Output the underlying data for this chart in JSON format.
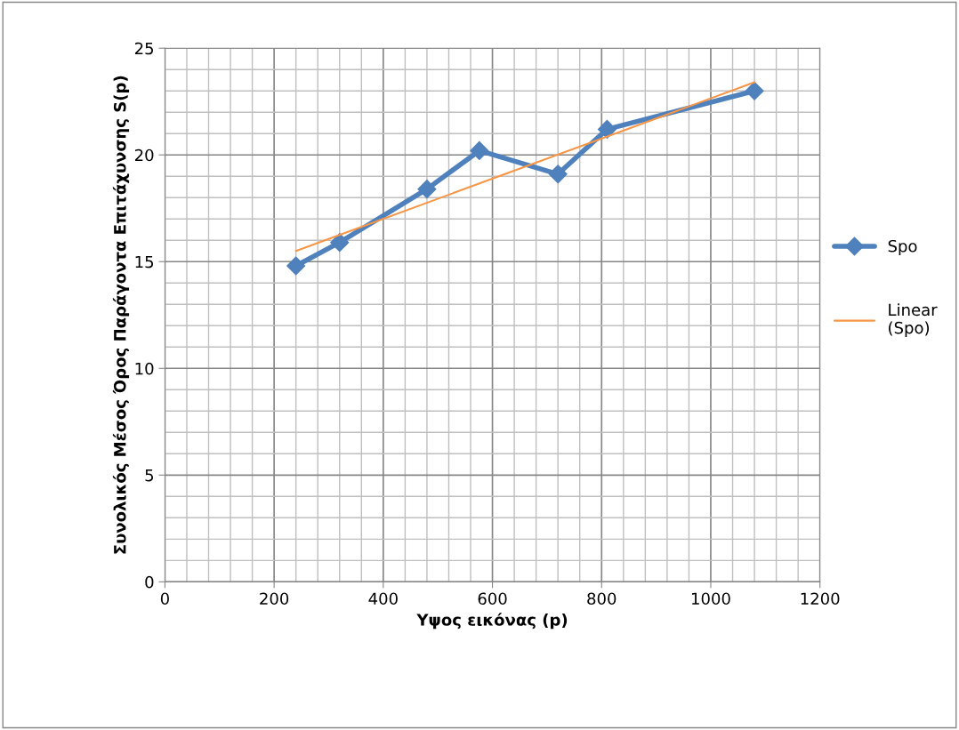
{
  "chart_data": {
    "type": "line",
    "xlabel": "Υψος εικόνας (p)",
    "ylabel": "Συνολικός Μέσος Όρος Παράγοντα Επιτάχυνσης S(p)",
    "x": [
      240,
      320,
      480,
      576,
      720,
      810,
      1080
    ],
    "series": [
      {
        "name": "Spo",
        "color": "#4f81bd",
        "values": [
          14.8,
          15.9,
          18.4,
          20.2,
          19.1,
          21.2,
          23.0
        ],
        "marker": "diamond"
      },
      {
        "name": "Linear (Spo)",
        "color": "#f79646",
        "type": "line",
        "x": [
          240,
          1080
        ],
        "values": [
          15.5,
          23.4
        ],
        "marker": "none"
      }
    ],
    "xlim": [
      0,
      1200
    ],
    "ylim": [
      0,
      25
    ],
    "xticks": [
      0,
      200,
      400,
      600,
      800,
      1000,
      1200
    ],
    "yticks": [
      0,
      5,
      10,
      15,
      20,
      25
    ],
    "grid": true,
    "legend": "right"
  }
}
